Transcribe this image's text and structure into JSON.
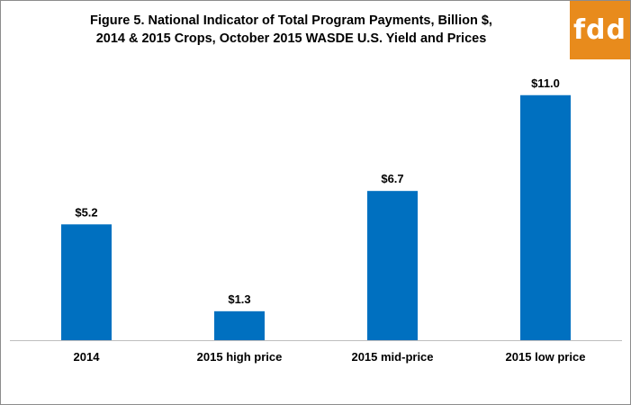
{
  "title": {
    "line1": "Figure 5. National Indicator of Total Program Payments, Billion $,",
    "line2": "2014 & 2015 Crops, October 2015 WASDE U.S. Yield  and Prices"
  },
  "logo": {
    "text": "fdd",
    "color": "#e88b1c"
  },
  "chart_data": {
    "type": "bar",
    "categories": [
      "2014",
      "2015 high price",
      "2015 mid-price",
      "2015 low price"
    ],
    "values": [
      5.2,
      1.3,
      6.7,
      11.0
    ],
    "data_labels": [
      "$5.2",
      "$1.3",
      "$6.7",
      "$11.0"
    ],
    "ylim": [
      0,
      12
    ],
    "bar_color": "#0070c0",
    "grid": false,
    "legend": "none"
  }
}
